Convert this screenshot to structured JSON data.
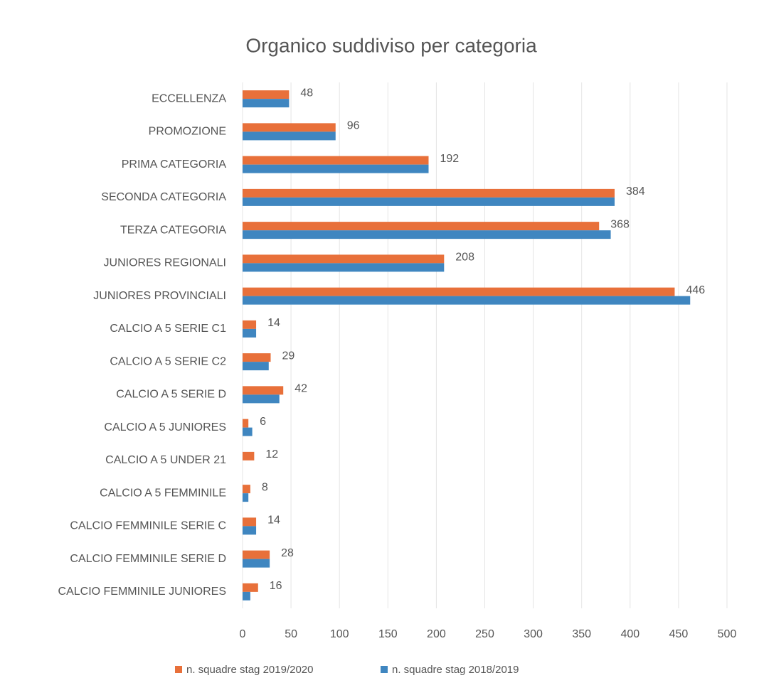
{
  "chart_data": {
    "type": "hbar",
    "title": "Organico suddiviso per categoria",
    "categories": [
      "ECCELLENZA",
      "PROMOZIONE",
      "PRIMA CATEGORIA",
      "SECONDA CATEGORIA",
      "TERZA CATEGORIA",
      "JUNIORES REGIONALI",
      "JUNIORES PROVINCIALI",
      "CALCIO A 5 SERIE C1",
      "CALCIO A 5 SERIE C2",
      "CALCIO A 5 SERIE D",
      "CALCIO A 5 JUNIORES",
      "CALCIO A 5 UNDER 21",
      "CALCIO A 5 FEMMINILE",
      "CALCIO FEMMINILE SERIE C",
      "CALCIO FEMMINILE SERIE D",
      "CALCIO FEMMINILE JUNIORES"
    ],
    "series": [
      {
        "name": "n. squadre stag 2019/2020",
        "color": "#e8703a",
        "values": [
          48,
          96,
          192,
          384,
          368,
          208,
          446,
          14,
          29,
          42,
          6,
          12,
          8,
          14,
          28,
          16
        ]
      },
      {
        "name": "n. squadre stag 2018/2019",
        "color": "#3f86c0",
        "values": [
          48,
          96,
          192,
          384,
          380,
          208,
          462,
          14,
          27,
          38,
          10,
          null,
          6,
          14,
          28,
          8
        ]
      }
    ],
    "xlim": [
      0,
      500
    ],
    "xticks": [
      0,
      50,
      100,
      150,
      200,
      250,
      300,
      350,
      400,
      450,
      500
    ],
    "grid": true,
    "legend": "bottom"
  }
}
